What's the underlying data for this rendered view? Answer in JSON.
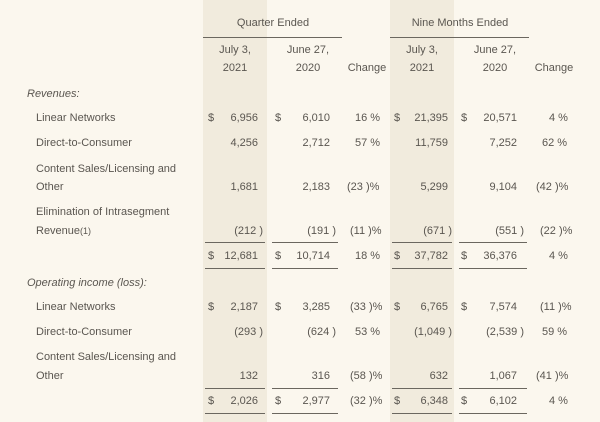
{
  "header": {
    "quarter_ended": "Quarter Ended",
    "nine_months_ended": "Nine Months Ended",
    "col_q_cur_line1": "July 3,",
    "col_q_cur_line2": "2021",
    "col_q_prev_line1": "June 27,",
    "col_q_prev_line2": "2020",
    "col_q_change": "Change",
    "col_n_cur_line1": "July 3,",
    "col_n_cur_line2": "2021",
    "col_n_prev_line1": "June 27,",
    "col_n_prev_line2": "2020",
    "col_n_change": "Change"
  },
  "sections": {
    "revenues": "Revenues:",
    "operating_income": "Operating income (loss):"
  },
  "rows": {
    "rev_linear": {
      "label": "Linear Networks",
      "q_cur_sym": "$",
      "q_cur": "6,956",
      "q_prev_sym": "$",
      "q_prev": "6,010",
      "q_chg": "16 %",
      "n_cur_sym": "$",
      "n_cur": "21,395",
      "n_prev_sym": "$",
      "n_prev": "20,571",
      "n_chg": "4 %"
    },
    "rev_dtc": {
      "label": "Direct-to-Consumer",
      "q_cur": "4,256",
      "q_prev": "2,712",
      "q_chg": "57 %",
      "n_cur": "11,759",
      "n_prev": "7,252",
      "n_chg": "62 %"
    },
    "rev_content": {
      "label1": "Content Sales/Licensing and",
      "label2": "Other",
      "q_cur": "1,681",
      "q_prev": "2,183",
      "q_chg": "(23 )%",
      "n_cur": "5,299",
      "n_prev": "9,104",
      "n_chg": "(42 )%"
    },
    "rev_elim": {
      "label1": "Elimination of Intrasegment",
      "label2": "Revenue",
      "label2_sup": "(1)",
      "q_cur": "(212 )",
      "q_prev": "(191 )",
      "q_chg": "(11 )%",
      "n_cur": "(671 )",
      "n_prev": "(551 )",
      "n_chg": "(22 )%"
    },
    "rev_total": {
      "q_cur_sym": "$",
      "q_cur": "12,681",
      "q_prev_sym": "$",
      "q_prev": "10,714",
      "q_chg": "18 %",
      "n_cur_sym": "$",
      "n_cur": "37,782",
      "n_prev_sym": "$",
      "n_prev": "36,376",
      "n_chg": "4 %"
    },
    "op_linear": {
      "label": "Linear Networks",
      "q_cur_sym": "$",
      "q_cur": "2,187",
      "q_prev_sym": "$",
      "q_prev": "3,285",
      "q_chg": "(33 )%",
      "n_cur_sym": "$",
      "n_cur": "6,765",
      "n_prev_sym": "$",
      "n_prev": "7,574",
      "n_chg": "(11 )%"
    },
    "op_dtc": {
      "label": "Direct-to-Consumer",
      "q_cur": "(293 )",
      "q_prev": "(624 )",
      "q_chg": "53 %",
      "n_cur": "(1,049 )",
      "n_prev": "(2,539 )",
      "n_chg": "59 %"
    },
    "op_content": {
      "label1": "Content Sales/Licensing and",
      "label2": "Other",
      "q_cur": "132",
      "q_prev": "316",
      "q_chg": "(58 )%",
      "n_cur": "632",
      "n_prev": "1,067",
      "n_chg": "(41 )%"
    },
    "op_total": {
      "q_cur_sym": "$",
      "q_cur": "2,026",
      "q_prev_sym": "$",
      "q_prev": "2,977",
      "q_chg": "(32 )%",
      "n_cur_sym": "$",
      "n_cur": "6,348",
      "n_prev_sym": "$",
      "n_prev": "6,102",
      "n_chg": "4 %"
    }
  }
}
